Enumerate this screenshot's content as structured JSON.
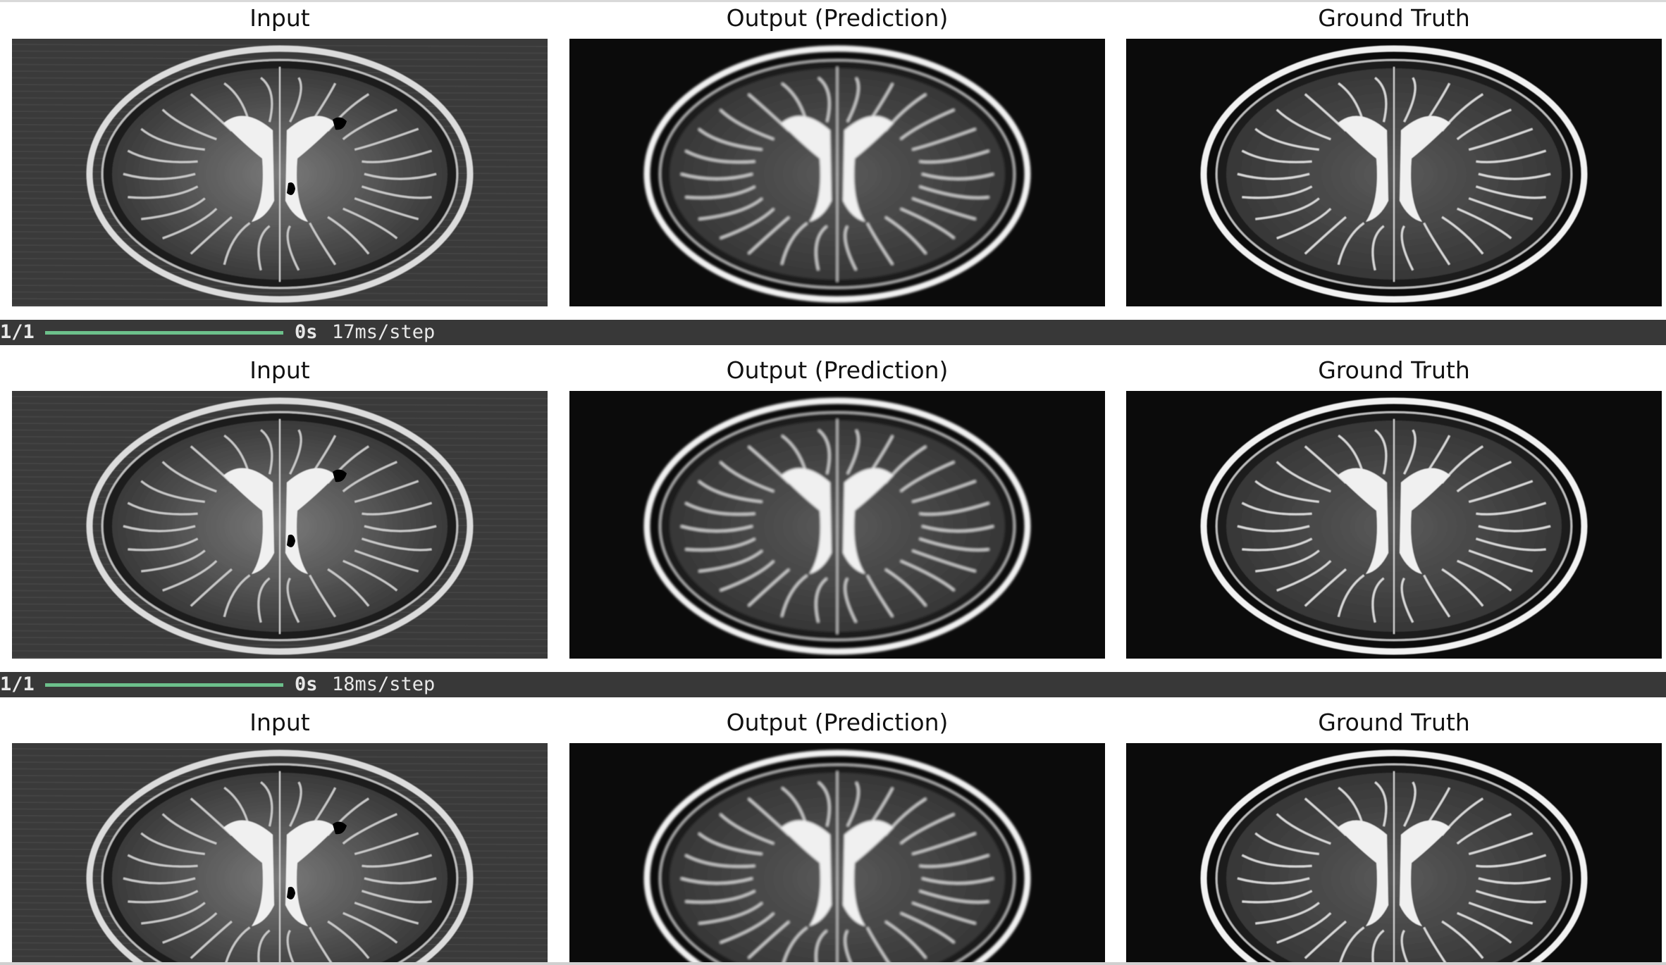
{
  "figure_rows": [
    {
      "panels": [
        {
          "title": "Input",
          "kind": "input"
        },
        {
          "title": "Output (Prediction)",
          "kind": "output"
        },
        {
          "title": "Ground Truth",
          "kind": "truth"
        }
      ]
    },
    {
      "panels": [
        {
          "title": "Input",
          "kind": "input"
        },
        {
          "title": "Output (Prediction)",
          "kind": "output"
        },
        {
          "title": "Ground Truth",
          "kind": "truth"
        }
      ]
    },
    {
      "panels": [
        {
          "title": "Input",
          "kind": "input"
        },
        {
          "title": "Output (Prediction)",
          "kind": "output"
        },
        {
          "title": "Ground Truth",
          "kind": "truth"
        }
      ]
    }
  ],
  "progress_lines": [
    {
      "count": "1/1",
      "elapsed": "0s",
      "rate": "17ms/step",
      "progress": 1.0
    },
    {
      "count": "1/1",
      "elapsed": "0s",
      "rate": "18ms/step",
      "progress": 1.0
    }
  ],
  "colors": {
    "progress_bg": "#383838",
    "progress_fill": "#6cc08b",
    "image_bg_input": "#3a3a3a",
    "image_bg_output": "#0b0b0b"
  }
}
